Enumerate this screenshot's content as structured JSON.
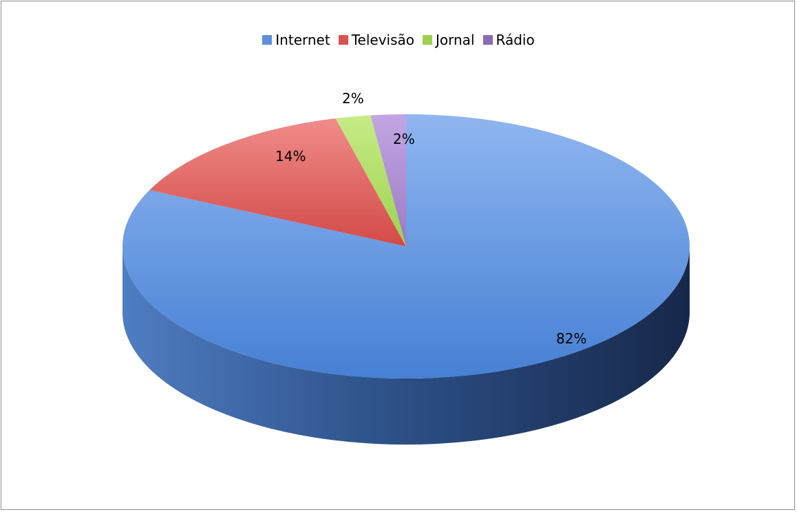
{
  "chart_data": {
    "type": "pie",
    "title": "",
    "categories": [
      "Internet",
      "Televisão",
      "Jornal",
      "Rádio"
    ],
    "values": [
      82,
      14,
      2,
      2
    ],
    "labels": [
      "82%",
      "14%",
      "2%",
      "2%"
    ],
    "colors": [
      "#5b8fd9",
      "#d9524f",
      "#9ed14e",
      "#8c6bb3"
    ],
    "legend_position": "top",
    "style": "3d"
  }
}
